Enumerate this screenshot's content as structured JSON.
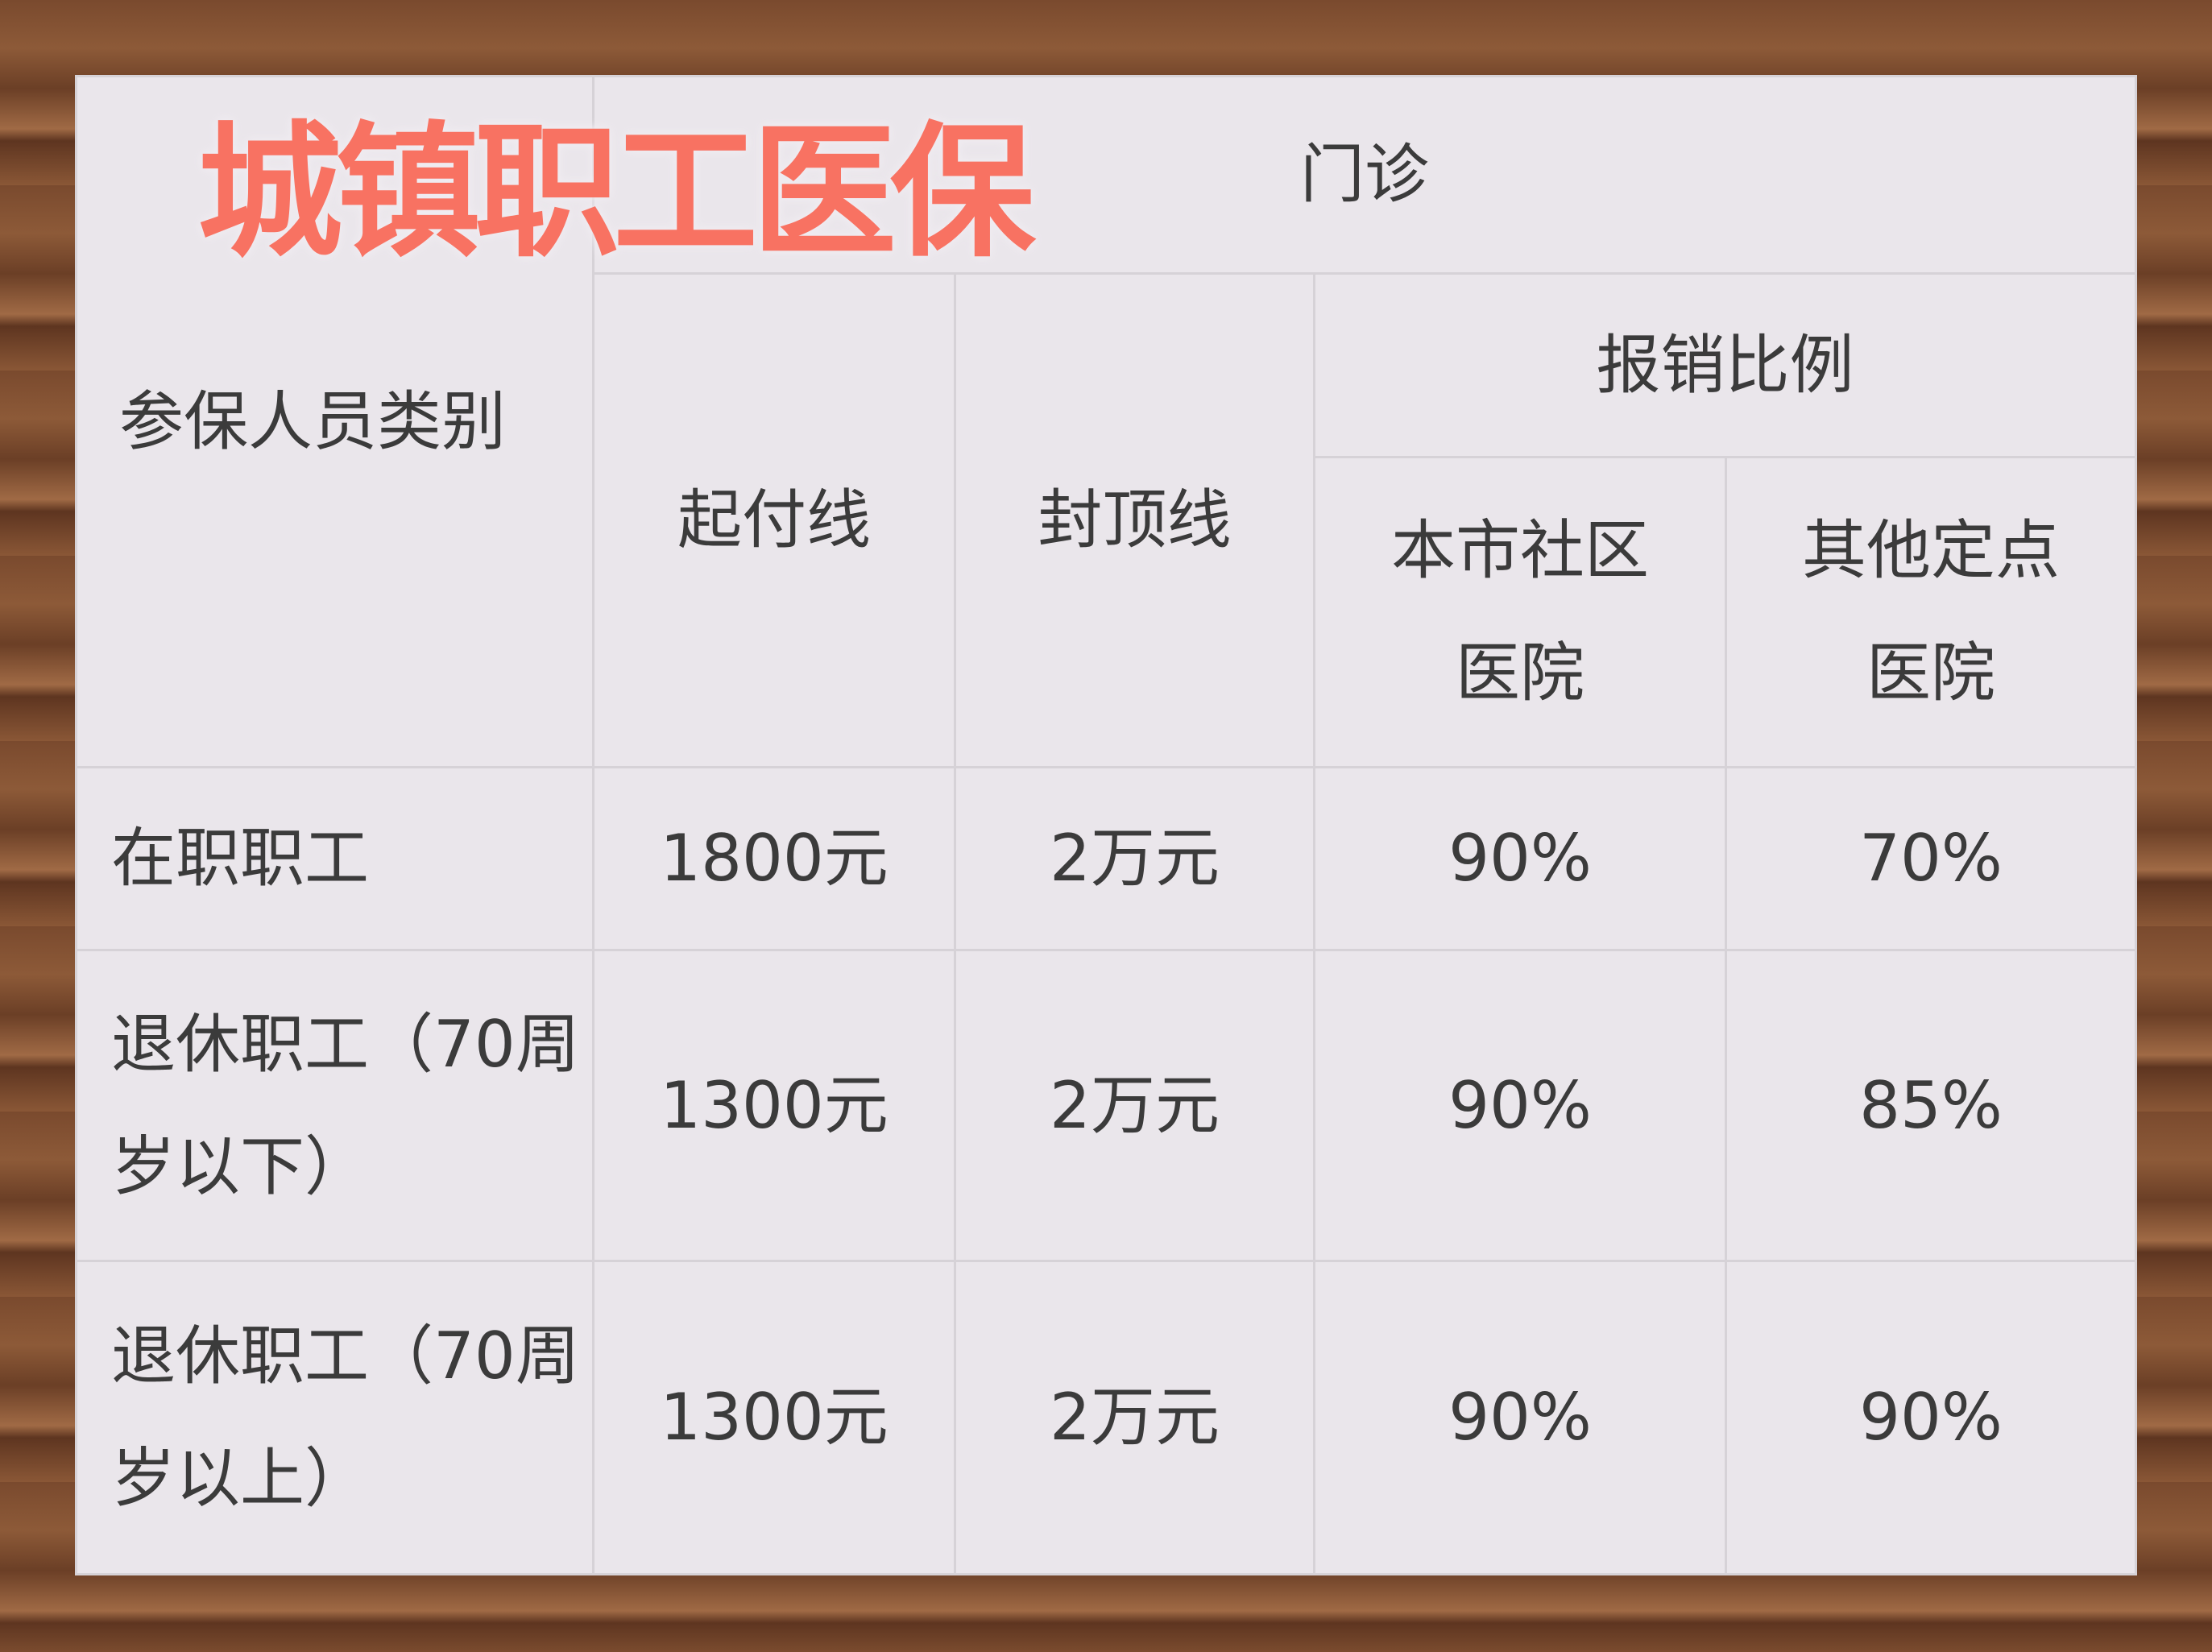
{
  "title": "城镇职工医保",
  "header": {
    "category": "参保人员类别",
    "outpatient": "门诊",
    "deductible": "起付线",
    "cap": "封顶线",
    "reimbursement": "报销比例",
    "local_community": "本市社区医院",
    "other_designated": "其他定点医院"
  },
  "rows": [
    {
      "category": "在职职工",
      "deductible": "1800元",
      "cap": "2万元",
      "local": "90%",
      "other": "70%"
    },
    {
      "category": "退休职工（70周岁以下）",
      "deductible": "1300元",
      "cap": "2万元",
      "local": "90%",
      "other": "85%"
    },
    {
      "category": "退休职工（70周岁以上）",
      "deductible": "1300元",
      "cap": "2万元",
      "local": "90%",
      "other": "90%"
    }
  ],
  "colors": {
    "title": "#f87262",
    "cell": "#eae6eb",
    "text": "#3b3b3b"
  }
}
